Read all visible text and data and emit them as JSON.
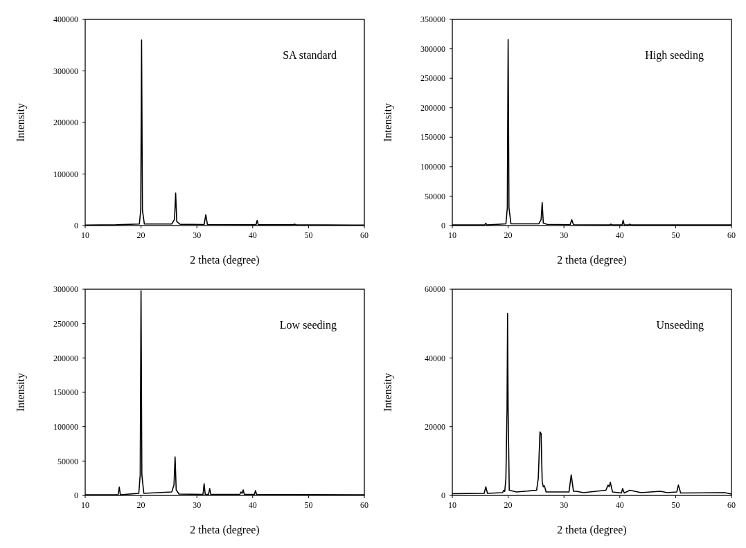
{
  "chart_data": [
    {
      "type": "line",
      "xlabel": "2 theta (degree)",
      "ylabel": "Intensity",
      "annotations": [
        "SA standard"
      ],
      "xlim": [
        10,
        60
      ],
      "xticks": [
        10,
        20,
        30,
        40,
        50,
        60
      ],
      "ylim": [
        0,
        400000
      ],
      "yticks": [
        0,
        100000,
        200000,
        300000,
        400000
      ],
      "line_style": "solid",
      "marker": "none",
      "series": [
        {
          "color": "#000000",
          "x": [
            10,
            15.5,
            19.7,
            19.95,
            20.1,
            20.25,
            20.6,
            25.5,
            26.0,
            26.2,
            26.4,
            27,
            31.3,
            31.6,
            31.9,
            40.6,
            40.8,
            41.0,
            47.2,
            47.5,
            47.8,
            60
          ],
          "values": [
            1000,
            1500,
            3000,
            30000,
            360000,
            30000,
            3000,
            3000,
            12000,
            63000,
            8000,
            2500,
            2000,
            21000,
            2000,
            1500,
            10000,
            1500,
            1500,
            2500,
            1500,
            1000
          ]
        }
      ]
    },
    {
      "type": "line",
      "xlabel": "2 theta (degree)",
      "ylabel": "Intensity",
      "annotations": [
        "High seeding"
      ],
      "xlim": [
        10,
        60
      ],
      "xticks": [
        10,
        20,
        30,
        40,
        50,
        60
      ],
      "ylim": [
        0,
        350000
      ],
      "yticks": [
        0,
        50000,
        100000,
        150000,
        200000,
        250000,
        300000,
        350000
      ],
      "line_style": "solid",
      "marker": "none",
      "series": [
        {
          "color": "#000000",
          "x": [
            10,
            15.8,
            16.0,
            16.2,
            19.6,
            19.85,
            20.0,
            20.15,
            20.5,
            25.5,
            25.9,
            26.1,
            26.3,
            27,
            31.1,
            31.4,
            31.7,
            38.2,
            38.4,
            38.6,
            40.4,
            40.6,
            40.8,
            41.6,
            41.8,
            42.0,
            60
          ],
          "values": [
            1000,
            1000,
            4000,
            1000,
            3000,
            30000,
            316000,
            30000,
            3000,
            3000,
            10000,
            39000,
            4000,
            2000,
            1500,
            10000,
            1500,
            1000,
            2500,
            1000,
            1000,
            9000,
            1000,
            1000,
            2500,
            1000,
            1000
          ]
        }
      ]
    },
    {
      "type": "line",
      "xlabel": "2 theta (degree)",
      "ylabel": "Intensity",
      "annotations": [
        "Low seeding"
      ],
      "xlim": [
        10,
        60
      ],
      "xticks": [
        10,
        20,
        30,
        40,
        50,
        60
      ],
      "ylim": [
        0,
        300000
      ],
      "yticks": [
        0,
        50000,
        100000,
        150000,
        200000,
        250000,
        300000
      ],
      "line_style": "solid",
      "marker": "none",
      "series": [
        {
          "color": "#000000",
          "x": [
            10,
            15.9,
            16.1,
            16.3,
            19.6,
            19.85,
            20.0,
            20.15,
            20.5,
            25.5,
            25.9,
            26.1,
            26.3,
            26.8,
            31.1,
            31.3,
            31.5,
            32.1,
            32.3,
            32.5,
            37.7,
            37.9,
            38.1,
            38.3,
            38.5,
            40.3,
            40.5,
            40.7,
            60
          ],
          "values": [
            1000,
            1000,
            12000,
            1000,
            3000,
            30000,
            298000,
            30000,
            3000,
            5000,
            15000,
            56000,
            8000,
            2000,
            1500,
            17000,
            1500,
            1500,
            10000,
            1500,
            1500,
            5000,
            3000,
            8000,
            1500,
            1500,
            7000,
            1500,
            1000
          ]
        }
      ]
    },
    {
      "type": "line",
      "xlabel": "2 theta (degree)",
      "ylabel": "Intensity",
      "annotations": [
        "Unseeding"
      ],
      "xlim": [
        10,
        60
      ],
      "xticks": [
        10,
        20,
        30,
        40,
        50,
        60
      ],
      "ylim": [
        0,
        60000
      ],
      "yticks": [
        0,
        20000,
        40000,
        60000
      ],
      "line_style": "solid",
      "marker": "none",
      "series": [
        {
          "color": "#000000",
          "x": [
            10,
            15.7,
            16.0,
            16.3,
            19.0,
            19.2,
            19.4,
            19.6,
            19.8,
            19.9,
            20.0,
            20.2,
            21.5,
            25.1,
            25.4,
            25.7,
            25.9,
            26.1,
            26.3,
            26.5,
            26.8,
            30.9,
            31.3,
            31.7,
            32.2,
            33.5,
            37.5,
            37.9,
            38.1,
            38.3,
            38.7,
            40.3,
            40.5,
            40.8,
            41.8,
            43.8,
            47.3,
            48.5,
            50.2,
            50.5,
            50.9,
            58.8,
            60
          ],
          "values": [
            500,
            600,
            2500,
            600,
            800,
            1500,
            1200,
            5000,
            25000,
            53000,
            25000,
            1500,
            1000,
            1500,
            5000,
            18500,
            18000,
            4000,
            2500,
            2800,
            1000,
            1000,
            6000,
            1200,
            1200,
            800,
            1500,
            3000,
            2500,
            3800,
            1000,
            700,
            2000,
            700,
            1500,
            800,
            1200,
            800,
            1000,
            3000,
            700,
            800,
            400
          ]
        }
      ]
    }
  ]
}
